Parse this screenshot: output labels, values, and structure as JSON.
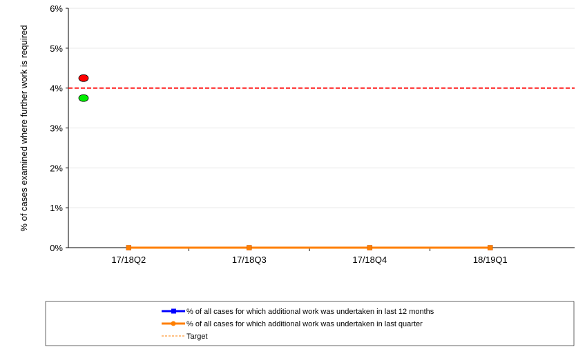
{
  "chart_data": {
    "type": "line",
    "title": "",
    "xlabel": "",
    "ylabel": "% of cases examined where further work is required",
    "categories": [
      "17/18Q2",
      "17/18Q3",
      "17/18Q4",
      "18/19Q1"
    ],
    "ylim": [
      0,
      6
    ],
    "yticks": [
      0,
      1,
      2,
      3,
      4,
      5,
      6
    ],
    "ytick_format": "percent",
    "grid": true,
    "legend_position": "bottom",
    "series": [
      {
        "name": "% of all cases for which additional work was undertaken in last 12 months",
        "values": [
          0,
          0,
          0,
          0
        ],
        "color": "#0000ff",
        "marker": "square"
      },
      {
        "name": "% of all cases for which additional work was undertaken in last quarter",
        "values": [
          0,
          0,
          0,
          0
        ],
        "color": "#ff7f00",
        "marker": "circle"
      },
      {
        "name": "Target",
        "values": [
          4,
          4,
          4,
          4
        ],
        "color": "#ff0000",
        "style": "dashed"
      }
    ],
    "indicators": [
      {
        "value": 4.25,
        "color": "#ff0000"
      },
      {
        "value": 3.75,
        "color": "#00ee00"
      }
    ],
    "legend_target_color": "#ff7f00"
  }
}
